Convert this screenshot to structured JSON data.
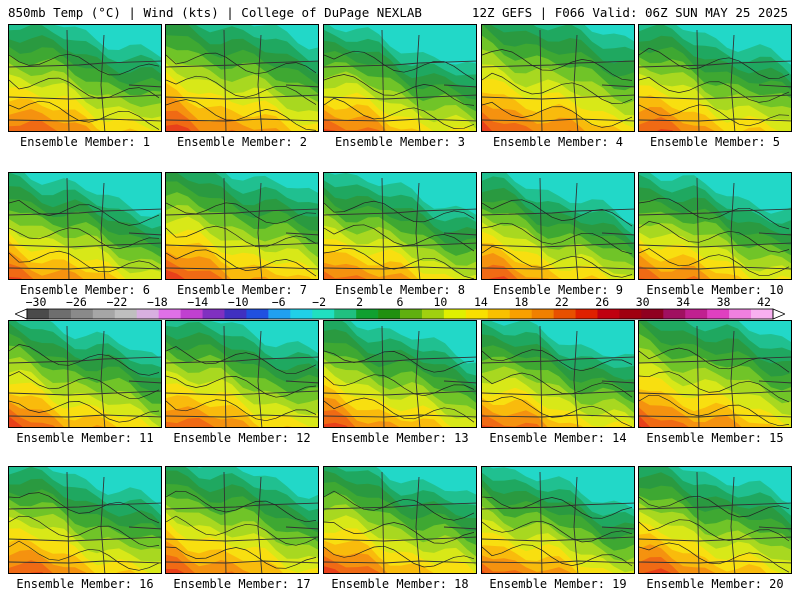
{
  "header": {
    "left": "850mb Temp (°C) | Wind (kts) | College of DuPage NEXLAB",
    "right": "12Z GEFS | F066 Valid: 06Z SUN MAY 25 2025"
  },
  "members": [
    {
      "label": "Ensemble Member: 1",
      "warm": 0.7
    },
    {
      "label": "Ensemble Member: 2",
      "warm": 0.85
    },
    {
      "label": "Ensemble Member: 3",
      "warm": 0.55
    },
    {
      "label": "Ensemble Member: 4",
      "warm": 0.9
    },
    {
      "label": "Ensemble Member: 5",
      "warm": 0.65
    },
    {
      "label": "Ensemble Member: 6",
      "warm": 0.6
    },
    {
      "label": "Ensemble Member: 7",
      "warm": 0.8
    },
    {
      "label": "Ensemble Member: 8",
      "warm": 0.6
    },
    {
      "label": "Ensemble Member: 9",
      "warm": 0.55
    },
    {
      "label": "Ensemble Member: 10",
      "warm": 0.6
    },
    {
      "label": "Ensemble Member: 11",
      "warm": 0.65
    },
    {
      "label": "Ensemble Member: 12",
      "warm": 0.7
    },
    {
      "label": "Ensemble Member: 13",
      "warm": 0.65
    },
    {
      "label": "Ensemble Member: 14",
      "warm": 0.6
    },
    {
      "label": "Ensemble Member: 15",
      "warm": 0.85
    },
    {
      "label": "Ensemble Member: 16",
      "warm": 0.65
    },
    {
      "label": "Ensemble Member: 17",
      "warm": 0.75
    },
    {
      "label": "Ensemble Member: 18",
      "warm": 0.7
    },
    {
      "label": "Ensemble Member: 19",
      "warm": 0.6
    },
    {
      "label": "Ensemble Member: 20",
      "warm": 0.7
    }
  ],
  "colorbar": {
    "ticks": [
      "−30",
      "−26",
      "−22",
      "−18",
      "−14",
      "−10",
      "−6",
      "−2",
      "2",
      "6",
      "10",
      "14",
      "18",
      "22",
      "26",
      "30",
      "34",
      "38",
      "42"
    ],
    "colors": [
      "#4a4a4a",
      "#6e6e6e",
      "#8a8a8a",
      "#a6a6a6",
      "#bfbfbf",
      "#d8b0e0",
      "#e070e8",
      "#c040d0",
      "#8030c0",
      "#4030c0",
      "#2050e0",
      "#20a0f0",
      "#20d0e8",
      "#20e0c0",
      "#20c080",
      "#10a030",
      "#209010",
      "#60b010",
      "#a0d010",
      "#e0f000",
      "#f8e000",
      "#f8c000",
      "#f8a000",
      "#f08000",
      "#e85000",
      "#e02000",
      "#c00010",
      "#a00010",
      "#900020",
      "#a01060",
      "#c02090",
      "#e040c0",
      "#f080e0",
      "#f8b0f0"
    ]
  }
}
